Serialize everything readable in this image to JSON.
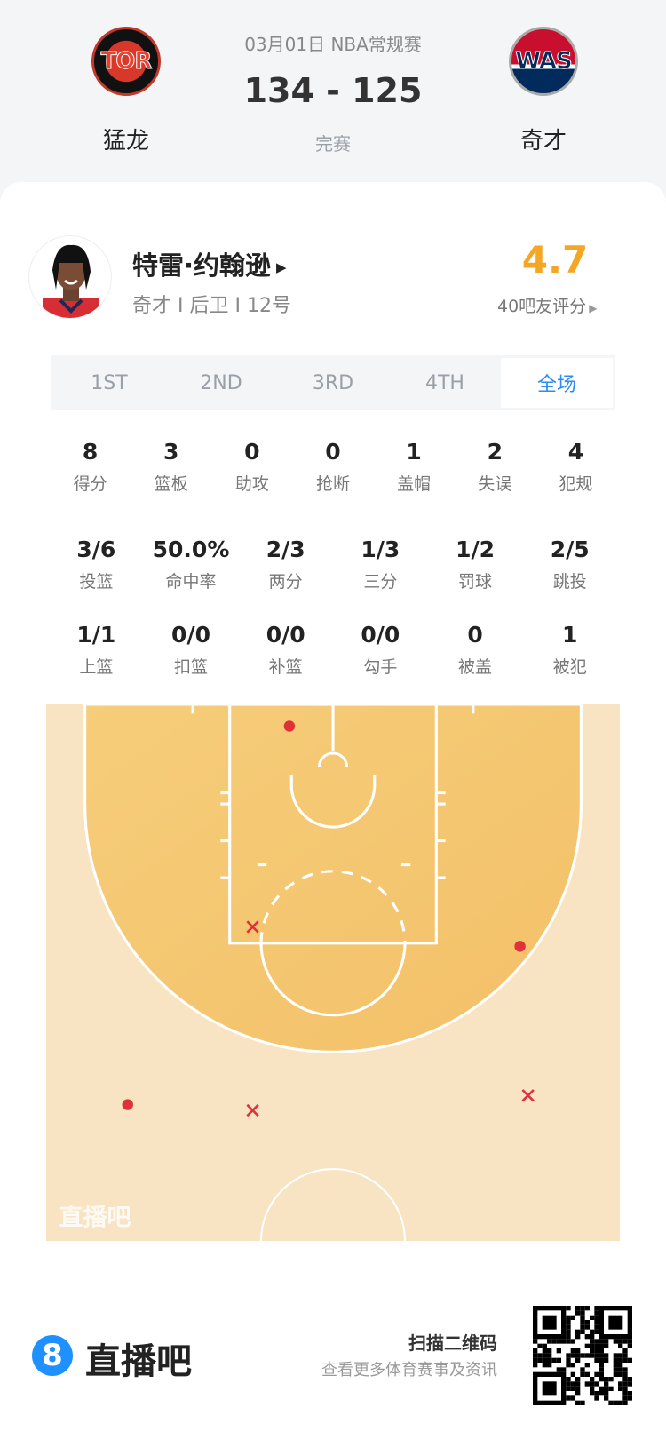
{
  "header": {
    "date_league": "03月01日 NBA常规赛",
    "score": "134 - 125",
    "status": "完赛",
    "home": {
      "abbr": "TOR",
      "name": "猛龙"
    },
    "away": {
      "abbr": "WAS",
      "name": "奇才"
    }
  },
  "player": {
    "name": "特雷·约翰逊",
    "info": "奇才 I 后卫 I 12号",
    "rating": "4.7",
    "rating_label": "40吧友评分"
  },
  "tabs": [
    {
      "label": "1ST"
    },
    {
      "label": "2ND"
    },
    {
      "label": "3RD"
    },
    {
      "label": "4TH"
    },
    {
      "label": "全场",
      "active": true
    }
  ],
  "stats_row1": [
    {
      "v": "8",
      "l": "得分"
    },
    {
      "v": "3",
      "l": "篮板"
    },
    {
      "v": "0",
      "l": "助攻"
    },
    {
      "v": "0",
      "l": "抢断"
    },
    {
      "v": "1",
      "l": "盖帽"
    },
    {
      "v": "2",
      "l": "失误"
    },
    {
      "v": "4",
      "l": "犯规"
    }
  ],
  "stats_row2": [
    {
      "v": "3/6",
      "l": "投篮"
    },
    {
      "v": "50.0%",
      "l": "命中率"
    },
    {
      "v": "2/3",
      "l": "两分"
    },
    {
      "v": "1/3",
      "l": "三分"
    },
    {
      "v": "1/2",
      "l": "罚球"
    },
    {
      "v": "2/5",
      "l": "跳投"
    }
  ],
  "stats_row3": [
    {
      "v": "1/1",
      "l": "上篮"
    },
    {
      "v": "0/0",
      "l": "扣篮"
    },
    {
      "v": "0/0",
      "l": "补篮"
    },
    {
      "v": "0/0",
      "l": "勾手"
    },
    {
      "v": "0",
      "l": "被盖"
    },
    {
      "v": "1",
      "l": "被犯"
    }
  ],
  "shot_chart": {
    "units": "feet (x from left sideline, y from baseline)",
    "shots": [
      {
        "x": 21.2,
        "y": 1.9,
        "made": true
      },
      {
        "x": 18.0,
        "y": 19.4,
        "made": false
      },
      {
        "x": 41.3,
        "y": 21.1,
        "made": true
      },
      {
        "x": 7.1,
        "y": 34.9,
        "made": true
      },
      {
        "x": 18.0,
        "y": 35.4,
        "made": false
      },
      {
        "x": 42.0,
        "y": 34.1,
        "made": false
      }
    ],
    "watermark": "直播吧"
  },
  "footer": {
    "brand": "直播吧",
    "scan": "扫描二维码",
    "sub": "查看更多体育赛事及资讯"
  },
  "colors": {
    "accent": "#2d8cf0",
    "rating": "#f5a623",
    "shot": "#e0303a",
    "court_inner": "#f5c872",
    "court_outer": "#f8e2bf"
  }
}
